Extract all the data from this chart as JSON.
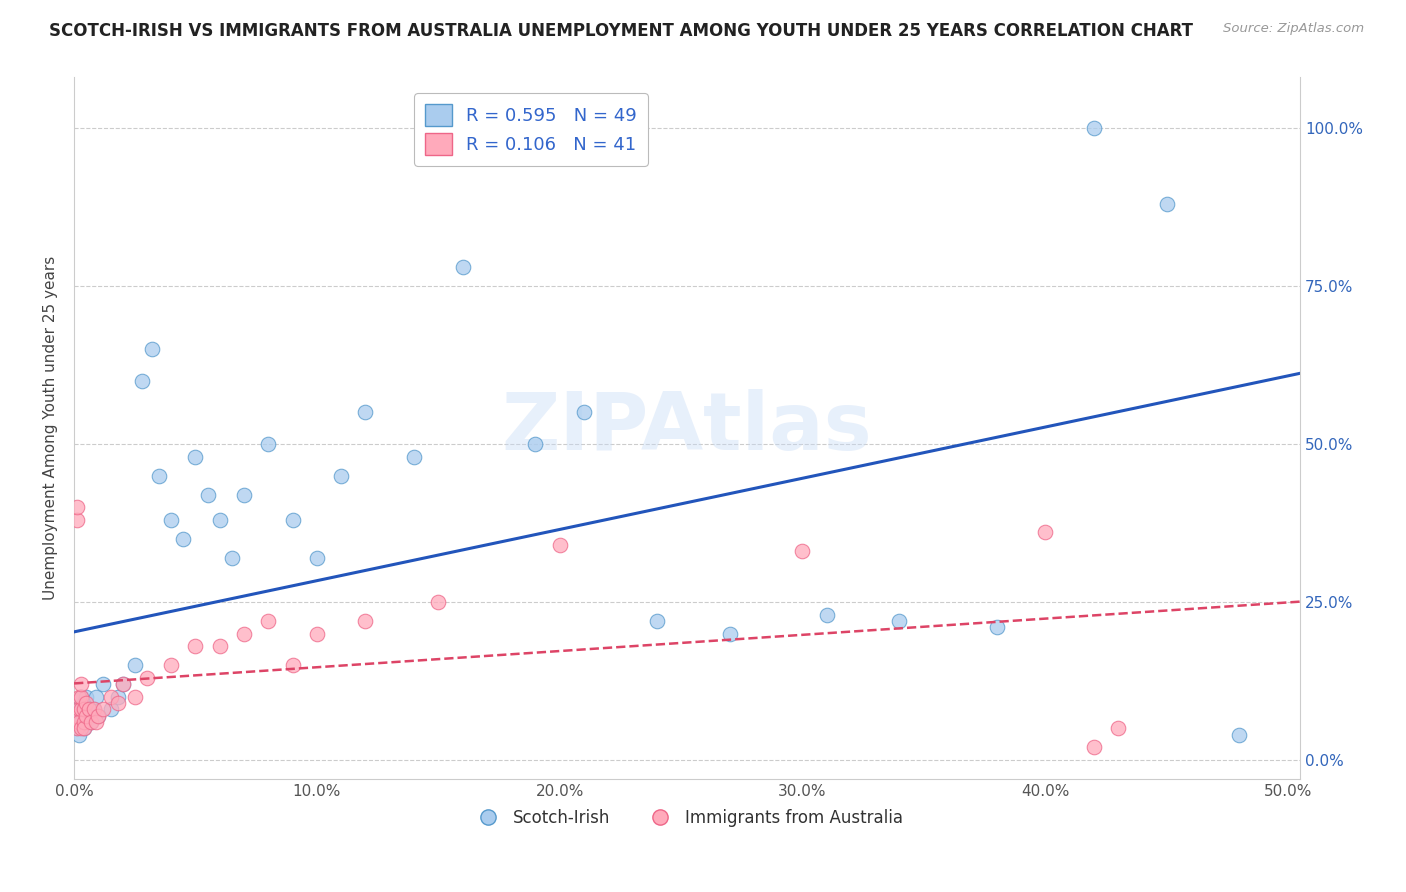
{
  "title": "SCOTCH-IRISH VS IMMIGRANTS FROM AUSTRALIA UNEMPLOYMENT AMONG YOUTH UNDER 25 YEARS CORRELATION CHART",
  "source": "Source: ZipAtlas.com",
  "ylabel": "Unemployment Among Youth under 25 years",
  "xlim": [
    0.0,
    0.505
  ],
  "ylim": [
    -0.03,
    1.08
  ],
  "yticks": [
    0.0,
    0.25,
    0.5,
    0.75,
    1.0
  ],
  "ytick_labels_left": [
    "",
    "",
    "",
    "",
    ""
  ],
  "ytick_labels_right": [
    "0.0%",
    "25.0%",
    "50.0%",
    "75.0%",
    "100.0%"
  ],
  "xticks": [
    0.0,
    0.1,
    0.2,
    0.3,
    0.4,
    0.5
  ],
  "xtick_labels": [
    "0.0%",
    "10.0%",
    "20.0%",
    "30.0%",
    "40.0%",
    "50.0%"
  ],
  "series1_color": "#aaccee",
  "series1_edgecolor": "#5599cc",
  "series2_color": "#ffaabb",
  "series2_edgecolor": "#ee6688",
  "line1_color": "#2255bb",
  "line2_color": "#dd4466",
  "legend_R1": "0.595",
  "legend_N1": "49",
  "legend_R2": "0.106",
  "legend_N2": "41",
  "legend_label1": "Scotch-Irish",
  "legend_label2": "Immigrants from Australia",
  "watermark": "ZIPAtlas",
  "scotch_irish_x": [
    0.001,
    0.001,
    0.002,
    0.002,
    0.003,
    0.003,
    0.003,
    0.004,
    0.004,
    0.005,
    0.005,
    0.005,
    0.006,
    0.007,
    0.008,
    0.009,
    0.01,
    0.012,
    0.015,
    0.018,
    0.02,
    0.025,
    0.028,
    0.032,
    0.035,
    0.04,
    0.045,
    0.05,
    0.055,
    0.06,
    0.065,
    0.07,
    0.08,
    0.09,
    0.1,
    0.11,
    0.12,
    0.14,
    0.16,
    0.19,
    0.21,
    0.24,
    0.27,
    0.31,
    0.34,
    0.38,
    0.42,
    0.45,
    0.48
  ],
  "scotch_irish_y": [
    0.05,
    0.08,
    0.04,
    0.07,
    0.06,
    0.08,
    0.1,
    0.05,
    0.09,
    0.06,
    0.07,
    0.1,
    0.08,
    0.06,
    0.08,
    0.1,
    0.07,
    0.12,
    0.08,
    0.1,
    0.12,
    0.15,
    0.6,
    0.65,
    0.45,
    0.38,
    0.35,
    0.48,
    0.42,
    0.38,
    0.32,
    0.42,
    0.5,
    0.38,
    0.32,
    0.45,
    0.55,
    0.48,
    0.78,
    0.5,
    0.55,
    0.22,
    0.2,
    0.23,
    0.22,
    0.21,
    1.0,
    0.88,
    0.04
  ],
  "aus_x": [
    0.001,
    0.001,
    0.001,
    0.001,
    0.002,
    0.002,
    0.002,
    0.003,
    0.003,
    0.003,
    0.003,
    0.004,
    0.004,
    0.004,
    0.005,
    0.005,
    0.006,
    0.007,
    0.008,
    0.009,
    0.01,
    0.012,
    0.015,
    0.018,
    0.02,
    0.025,
    0.03,
    0.04,
    0.05,
    0.06,
    0.07,
    0.08,
    0.09,
    0.1,
    0.12,
    0.15,
    0.2,
    0.3,
    0.4,
    0.42,
    0.43
  ],
  "aus_y": [
    0.38,
    0.4,
    0.05,
    0.07,
    0.08,
    0.06,
    0.1,
    0.05,
    0.08,
    0.1,
    0.12,
    0.06,
    0.08,
    0.05,
    0.07,
    0.09,
    0.08,
    0.06,
    0.08,
    0.06,
    0.07,
    0.08,
    0.1,
    0.09,
    0.12,
    0.1,
    0.13,
    0.15,
    0.18,
    0.18,
    0.2,
    0.22,
    0.15,
    0.2,
    0.22,
    0.25,
    0.34,
    0.33,
    0.36,
    0.02,
    0.05
  ]
}
